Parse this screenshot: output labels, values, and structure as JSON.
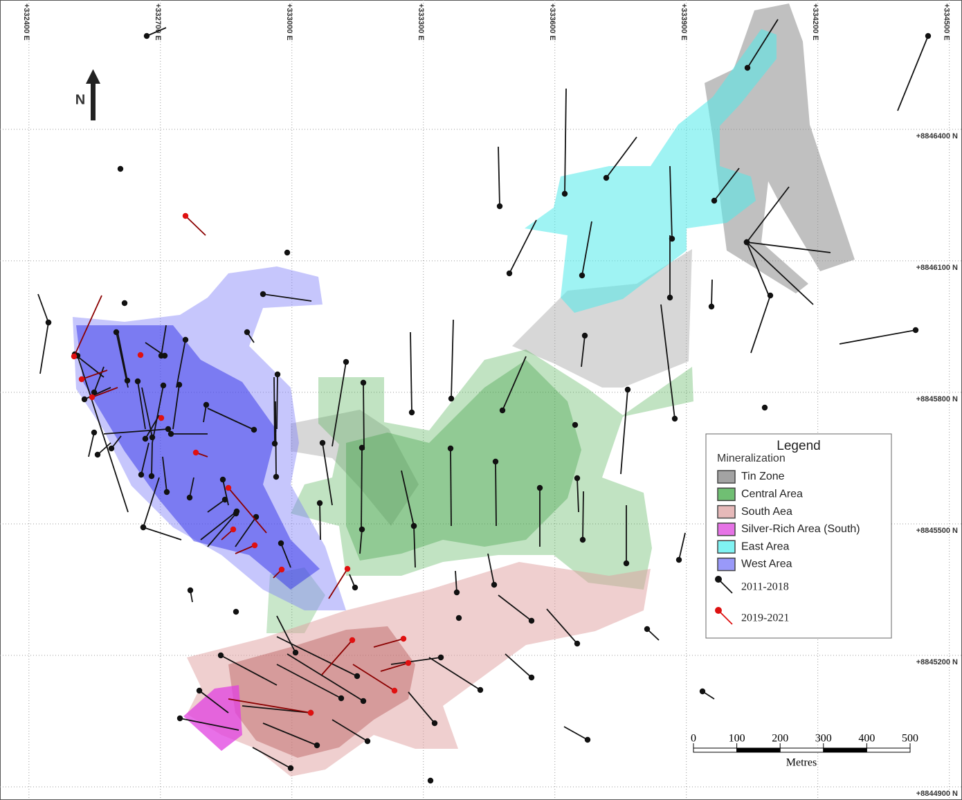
{
  "map": {
    "xlim": [
      332334,
      334529
    ],
    "ylim": [
      8844870,
      8846695
    ],
    "eastings": [
      {
        "value": 332400,
        "label": "+332400 E"
      },
      {
        "value": 332700,
        "label": "+332700 E"
      },
      {
        "value": 333000,
        "label": "+333000 E"
      },
      {
        "value": 333300,
        "label": "+333300 E"
      },
      {
        "value": 333600,
        "label": "+333600 E"
      },
      {
        "value": 333900,
        "label": "+333900 E"
      },
      {
        "value": 334200,
        "label": "+334200 E"
      },
      {
        "value": 334500,
        "label": "+334500 E"
      }
    ],
    "northings": [
      {
        "value": 8846400,
        "label": "+8846400 N"
      },
      {
        "value": 8846100,
        "label": "+8846100 N"
      },
      {
        "value": 8845800,
        "label": "+8845800 N"
      },
      {
        "value": 8845500,
        "label": "+8845500 N"
      },
      {
        "value": 8845200,
        "label": "+8845200 N"
      },
      {
        "value": 8844900,
        "label": "+8844900 N"
      }
    ],
    "north_label": "N"
  },
  "legend": {
    "title": "Legend",
    "subtitle": "Mineralization",
    "zones": [
      {
        "name": "Tin Zone",
        "color": "#8c8c8c"
      },
      {
        "name": "Central Area",
        "color": "#4caf50"
      },
      {
        "name": "South Aea",
        "color": "#e0a8a8"
      },
      {
        "name": "Silver-Rich Area (South)",
        "color": "#e050e0"
      },
      {
        "name": "East Area",
        "color": "#60f0f0"
      },
      {
        "name": "West Area",
        "color": "#8080f8"
      }
    ],
    "drillholes": [
      {
        "name": "2011-2018",
        "color": "#111111"
      },
      {
        "name": "2019-2021",
        "color": "#dd1111"
      }
    ]
  },
  "scale_bar": {
    "ticks": [
      0,
      100,
      200,
      300,
      400,
      500
    ],
    "label": "Metres"
  }
}
